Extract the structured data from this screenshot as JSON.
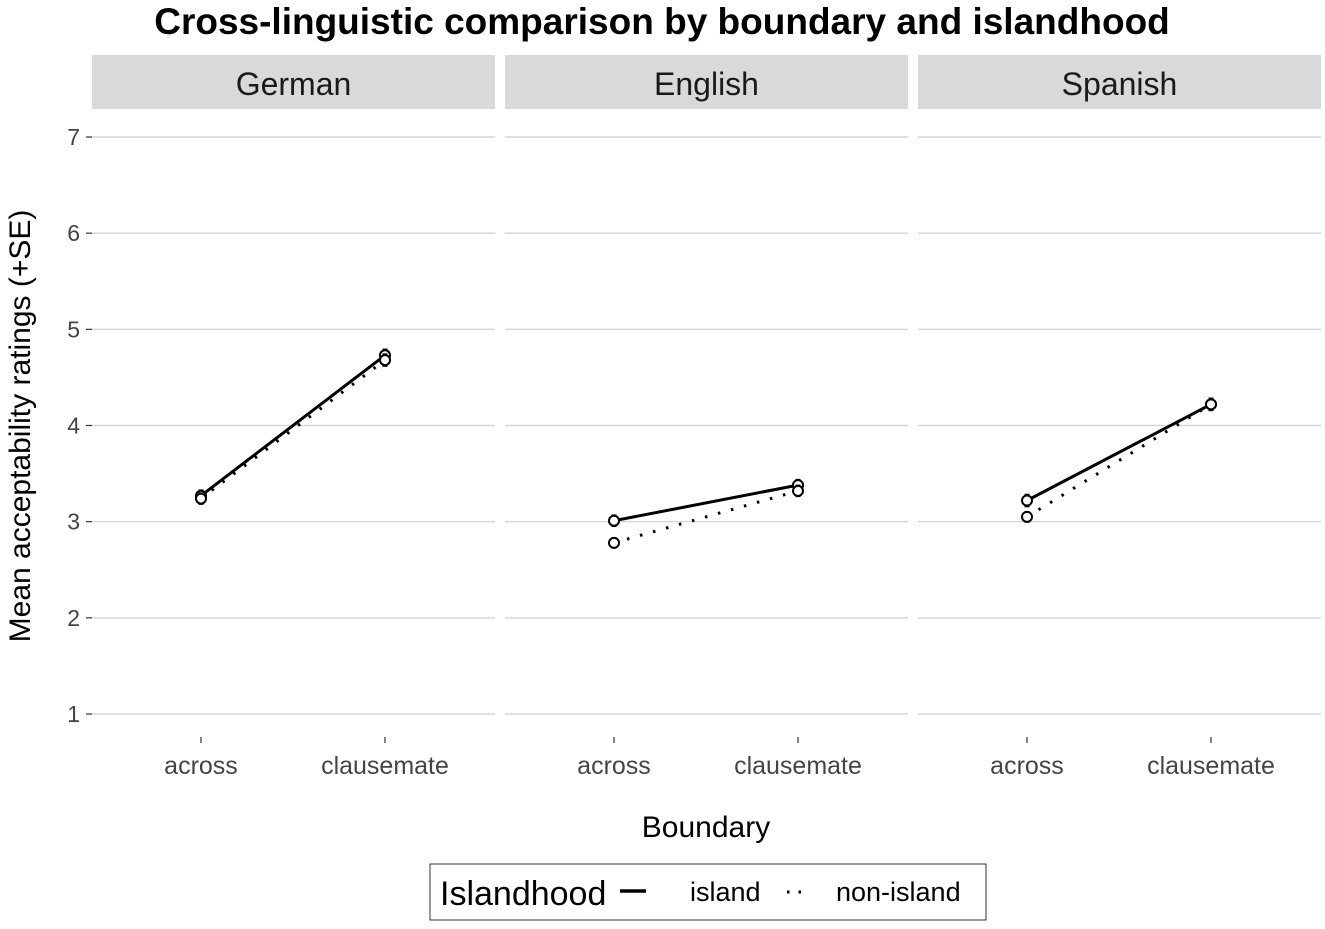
{
  "chart_data": {
    "type": "line",
    "title": "Cross-linguistic comparison by boundary and islandhood",
    "xlabel": "Boundary",
    "ylabel": "Mean acceptability ratings (+SE)",
    "ylim": [
      1,
      7
    ],
    "yticks": [
      1,
      2,
      3,
      4,
      5,
      6,
      7
    ],
    "categories": [
      "across",
      "clausemate"
    ],
    "grid": true,
    "legend": {
      "title": "Islandhood",
      "position": "bottom",
      "entries": [
        {
          "label": "island",
          "linestyle": "solid"
        },
        {
          "label": "non-island",
          "linestyle": "dotted"
        }
      ]
    },
    "panels": [
      {
        "facet": "German",
        "series": [
          {
            "name": "island",
            "values": [
              3.27,
              4.73
            ],
            "se": [
              0.11,
              0.12
            ]
          },
          {
            "name": "non-island",
            "values": [
              3.24,
              4.68
            ],
            "se": [
              0.11,
              0.12
            ]
          }
        ]
      },
      {
        "facet": "English",
        "series": [
          {
            "name": "island",
            "values": [
              3.01,
              3.38
            ],
            "se": [
              0.11,
              0.11
            ]
          },
          {
            "name": "non-island",
            "values": [
              2.78,
              3.32
            ],
            "se": [
              0.1,
              0.11
            ]
          }
        ]
      },
      {
        "facet": "Spanish",
        "series": [
          {
            "name": "island",
            "values": [
              3.22,
              4.22
            ],
            "se": [
              0.12,
              0.12
            ]
          },
          {
            "name": "non-island",
            "values": [
              3.05,
              4.22
            ],
            "se": [
              0.1,
              0.12
            ]
          }
        ]
      }
    ]
  }
}
